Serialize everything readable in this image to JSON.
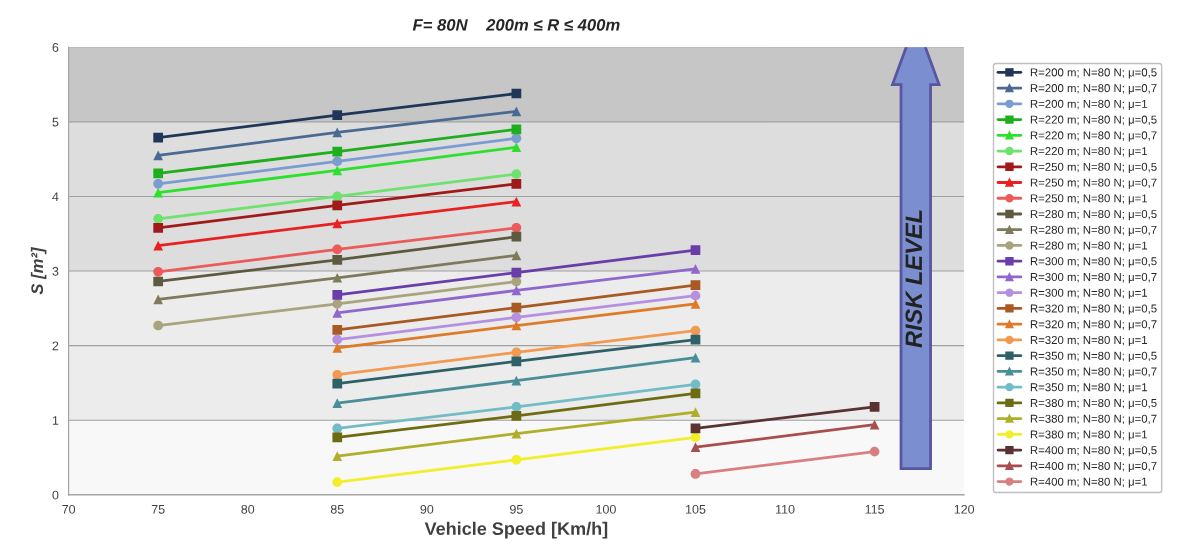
{
  "chart_data": {
    "type": "line",
    "title": "F= 80N    200m ≤ R ≤ 400m",
    "xlabel": "Vehicle Speed [Km/h]",
    "ylabel": "S [m²]",
    "xlim": [
      70,
      120
    ],
    "xticks": [
      70,
      75,
      80,
      85,
      90,
      95,
      100,
      105,
      110,
      115,
      120
    ],
    "ylim": [
      0,
      6
    ],
    "yticks": [
      0,
      1,
      2,
      3,
      4,
      5,
      6
    ],
    "grid": "y",
    "legend": "right",
    "bands": [
      {
        "axis": "y",
        "from": 0,
        "to": 1,
        "color": "#f8f8f8"
      },
      {
        "axis": "y",
        "from": 1,
        "to": 3,
        "color": "#ececec"
      },
      {
        "axis": "y",
        "from": 3,
        "to": 5,
        "color": "#dddddd"
      },
      {
        "axis": "y",
        "from": 5,
        "to": 6,
        "color": "#c6c6c6"
      }
    ],
    "annotations": [
      "RISK LEVEL"
    ],
    "series": [
      {
        "name": "R=200 m; N=80 N; μ=0,5",
        "color": "#1f3658",
        "marker": "square",
        "x": [
          75,
          85,
          95
        ],
        "values": [
          4.79,
          5.09,
          5.38
        ]
      },
      {
        "name": "R=200 m; N=80 N; μ=0,7",
        "color": "#4a6a94",
        "marker": "triangle",
        "x": [
          75,
          85,
          95
        ],
        "values": [
          4.55,
          4.86,
          5.14
        ]
      },
      {
        "name": "R=200 m; N=80 N; μ=1",
        "color": "#7b9cd0",
        "marker": "circle",
        "x": [
          75,
          85,
          95
        ],
        "values": [
          4.17,
          4.47,
          4.78
        ]
      },
      {
        "name": "R=220 m; N=80 N; μ=0,5",
        "color": "#1eae1e",
        "marker": "square",
        "x": [
          75,
          85,
          95
        ],
        "values": [
          4.31,
          4.6,
          4.9
        ]
      },
      {
        "name": "R=220 m; N=80 N; μ=0,7",
        "color": "#2ee02e",
        "marker": "triangle",
        "x": [
          75,
          85,
          95
        ],
        "values": [
          4.05,
          4.35,
          4.66
        ]
      },
      {
        "name": "R=220 m; N=80 N; μ=1",
        "color": "#6ee26e",
        "marker": "circle",
        "x": [
          75,
          85,
          95
        ],
        "values": [
          3.7,
          4.0,
          4.3
        ]
      },
      {
        "name": "R=250 m; N=80 N; μ=0,5",
        "color": "#a01a1a",
        "marker": "square",
        "x": [
          75,
          85,
          95
        ],
        "values": [
          3.58,
          3.88,
          4.17
        ]
      },
      {
        "name": "R=250 m; N=80 N; μ=0,7",
        "color": "#e82020",
        "marker": "triangle",
        "x": [
          75,
          85,
          95
        ],
        "values": [
          3.34,
          3.64,
          3.93
        ]
      },
      {
        "name": "R=250 m; N=80 N; μ=1",
        "color": "#ec5a5a",
        "marker": "circle",
        "x": [
          75,
          85,
          95
        ],
        "values": [
          2.99,
          3.29,
          3.58
        ]
      },
      {
        "name": "R=280 m; N=80 N; μ=0,5",
        "color": "#5e5a40",
        "marker": "square",
        "x": [
          75,
          85,
          95
        ],
        "values": [
          2.86,
          3.15,
          3.46
        ]
      },
      {
        "name": "R=280 m; N=80 N; μ=0,7",
        "color": "#7e7a5c",
        "marker": "triangle",
        "x": [
          75,
          85,
          95
        ],
        "values": [
          2.62,
          2.91,
          3.21
        ]
      },
      {
        "name": "R=280 m; N=80 N; μ=1",
        "color": "#a8a47e",
        "marker": "circle",
        "x": [
          75,
          85,
          95
        ],
        "values": [
          2.27,
          2.56,
          2.86
        ]
      },
      {
        "name": "R=300 m; N=80 N; μ=0,5",
        "color": "#6a3ea8",
        "marker": "square",
        "x": [
          85,
          95,
          105
        ],
        "values": [
          2.68,
          2.98,
          3.28
        ]
      },
      {
        "name": "R=300 m; N=80 N; μ=0,7",
        "color": "#9068cc",
        "marker": "triangle",
        "x": [
          85,
          95,
          105
        ],
        "values": [
          2.44,
          2.74,
          3.03
        ]
      },
      {
        "name": "R=300 m; N=80 N; μ=1",
        "color": "#b690e0",
        "marker": "circle",
        "x": [
          85,
          95,
          105
        ],
        "values": [
          2.08,
          2.38,
          2.67
        ]
      },
      {
        "name": "R=320 m; N=80 N; μ=0,5",
        "color": "#a85a22",
        "marker": "square",
        "x": [
          85,
          95,
          105
        ],
        "values": [
          2.21,
          2.51,
          2.81
        ]
      },
      {
        "name": "R=320 m; N=80 N; μ=0,7",
        "color": "#de7a28",
        "marker": "triangle",
        "x": [
          85,
          95,
          105
        ],
        "values": [
          1.97,
          2.27,
          2.56
        ]
      },
      {
        "name": "R=320 m; N=80 N; μ=1",
        "color": "#f09a52",
        "marker": "circle",
        "x": [
          85,
          95,
          105
        ],
        "values": [
          1.61,
          1.91,
          2.2
        ]
      },
      {
        "name": "R=350 m; N=80 N; μ=0,5",
        "color": "#2e6068",
        "marker": "square",
        "x": [
          85,
          95,
          105
        ],
        "values": [
          1.49,
          1.79,
          2.08
        ]
      },
      {
        "name": "R=350 m; N=80 N; μ=0,7",
        "color": "#4a8e98",
        "marker": "triangle",
        "x": [
          85,
          95,
          105
        ],
        "values": [
          1.23,
          1.53,
          1.84
        ]
      },
      {
        "name": "R=350 m; N=80 N; μ=1",
        "color": "#72bcc6",
        "marker": "circle",
        "x": [
          85,
          95,
          105
        ],
        "values": [
          0.89,
          1.18,
          1.48
        ]
      },
      {
        "name": "R=380 m; N=80 N; μ=0,5",
        "color": "#6e6c12",
        "marker": "square",
        "x": [
          85,
          95,
          105
        ],
        "values": [
          0.77,
          1.06,
          1.36
        ]
      },
      {
        "name": "R=380 m; N=80 N; μ=0,7",
        "color": "#b0ae2a",
        "marker": "triangle",
        "x": [
          85,
          95,
          105
        ],
        "values": [
          0.52,
          0.82,
          1.11
        ]
      },
      {
        "name": "R=380 m; N=80 N; μ=1",
        "color": "#f2ee2a",
        "marker": "circle",
        "x": [
          85,
          95,
          105
        ],
        "values": [
          0.17,
          0.47,
          0.77
        ]
      },
      {
        "name": "R=400 m; N=80 N; μ=0,5",
        "color": "#5a3232",
        "marker": "square",
        "x": [
          105,
          115
        ],
        "values": [
          0.89,
          1.18
        ]
      },
      {
        "name": "R=400 m; N=80 N; μ=0,7",
        "color": "#a84e4e",
        "marker": "triangle",
        "x": [
          105,
          115
        ],
        "values": [
          0.64,
          0.94
        ]
      },
      {
        "name": "R=400 m; N=80 N; μ=1",
        "color": "#d88080",
        "marker": "circle",
        "x": [
          105,
          115
        ],
        "values": [
          0.28,
          0.58
        ]
      }
    ]
  }
}
